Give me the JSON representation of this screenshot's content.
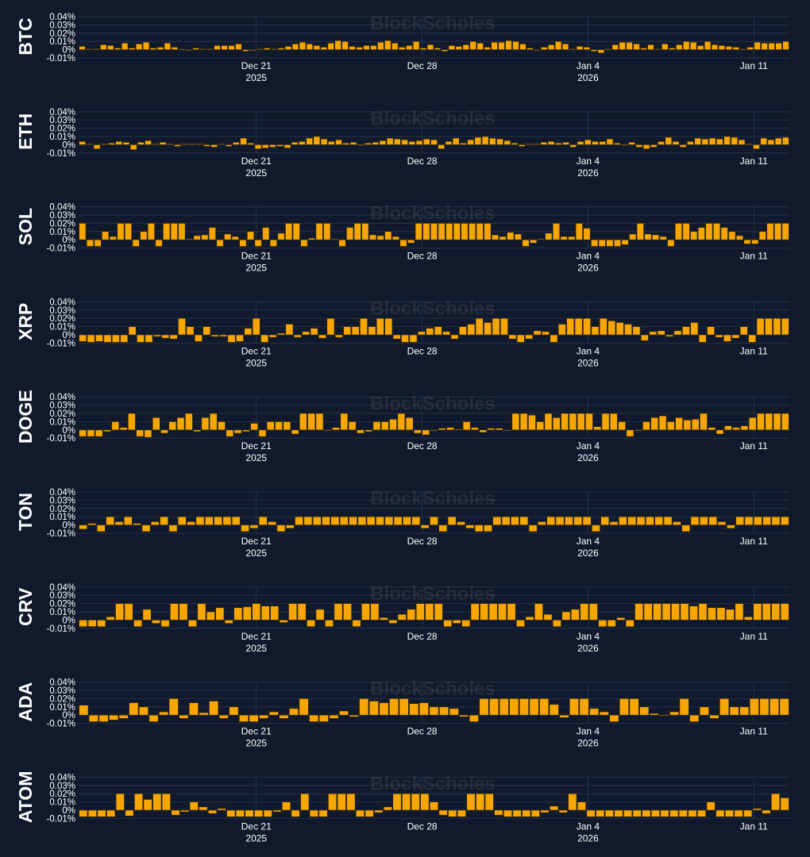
{
  "theme": {
    "background": "#111a2c",
    "bar_color": "#f7a600",
    "bar_edge": "#2a2410",
    "grid_color": "#25314a",
    "text_color": "#ffffff"
  },
  "watermark": "BlockScholes",
  "x_ticks": [
    {
      "label": "Dec 21",
      "sub": "2025",
      "index": 22
    },
    {
      "label": "Dec 28",
      "sub": "",
      "index": 43
    },
    {
      "label": "Jan 4",
      "sub": "2026",
      "index": 64
    },
    {
      "label": "Jan 11",
      "sub": "",
      "index": 85
    }
  ],
  "y_tick_labels": [
    "0.04%",
    "0.03%",
    "0.02%",
    "0.01%",
    "0%",
    "-0.01%"
  ],
  "chart_data": [
    {
      "type": "bar",
      "title": "BTC",
      "ylim": [
        -0.01,
        0.04
      ],
      "unit": "%",
      "values": [
        0.004,
        0.001,
        0.001,
        0.006,
        0.005,
        0.002,
        0.008,
        0.002,
        0.007,
        0.009,
        0.002,
        0.003,
        0.008,
        0.003,
        0.001,
        -0.001,
        0.002,
        0.001,
        0.001,
        0.005,
        0.005,
        0.005,
        0.007,
        -0.002,
        -0.001,
        0.001,
        0.002,
        0.001,
        0.002,
        0.004,
        0.007,
        0.009,
        0.007,
        0.005,
        0.003,
        0.008,
        0.011,
        0.01,
        0.004,
        0.003,
        0.005,
        0.005,
        0.009,
        0.011,
        0.008,
        0.003,
        0.005,
        0.01,
        0.002,
        0.006,
        0.002,
        -0.002,
        0.005,
        0.004,
        0.006,
        0.01,
        0.008,
        0.003,
        0.009,
        0.009,
        0.011,
        0.01,
        0.007,
        0.002,
        -0.001,
        0.003,
        0.006,
        0.01,
        0.007,
        0.001,
        0.004,
        0.003,
        -0.002,
        -0.004,
        0.001,
        0.006,
        0.009,
        0.009,
        0.007,
        0.002,
        0.006,
        0.001,
        0.007,
        0.002,
        0.006,
        0.01,
        0.009,
        0.005,
        0.01,
        0.006,
        0.005,
        0.004,
        0.003,
        0.001,
        0.003,
        0.009,
        0.008,
        0.008,
        0.008,
        0.01
      ]
    },
    {
      "type": "bar",
      "title": "ETH",
      "ylim": [
        -0.01,
        0.04
      ],
      "unit": "%",
      "values": [
        0.004,
        0.001,
        -0.005,
        0.001,
        0.002,
        0.004,
        0.003,
        -0.006,
        0.003,
        0.005,
        0.001,
        0.003,
        0.001,
        -0.002,
        0.001,
        0.001,
        0.001,
        -0.002,
        -0.003,
        0.001,
        -0.002,
        0.003,
        0.008,
        0.002,
        -0.005,
        -0.004,
        -0.003,
        -0.002,
        -0.004,
        0.003,
        0.004,
        0.008,
        0.01,
        0.007,
        0.004,
        0.006,
        0.002,
        0.003,
        -0.001,
        0.002,
        0.003,
        0.005,
        0.008,
        0.007,
        0.006,
        0.004,
        0.005,
        0.007,
        0.006,
        -0.005,
        0.004,
        0.008,
        0.002,
        0.006,
        0.009,
        0.01,
        0.008,
        0.007,
        0.005,
        0.002,
        -0.002,
        0.001,
        0.001,
        0.003,
        0.004,
        0.002,
        0.003,
        -0.003,
        0.004,
        0.006,
        0.004,
        0.004,
        0.007,
        0.002,
        -0.001,
        0.003,
        -0.003,
        -0.005,
        -0.003,
        0.004,
        0.009,
        0.004,
        -0.003,
        0.004,
        0.008,
        0.007,
        0.008,
        0.007,
        0.01,
        0.009,
        0.006,
        0.001,
        -0.005,
        0.008,
        0.006,
        0.008,
        0.009
      ]
    },
    {
      "type": "bar",
      "title": "SOL",
      "ylim": [
        -0.01,
        0.04
      ],
      "unit": "%",
      "values": [
        0.02,
        -0.008,
        -0.008,
        0.01,
        0.004,
        0.02,
        0.02,
        -0.008,
        0.01,
        0.02,
        -0.008,
        0.02,
        0.02,
        0.02,
        0.001,
        0.005,
        0.006,
        0.015,
        -0.008,
        0.007,
        0.004,
        -0.008,
        0.01,
        -0.008,
        0.015,
        -0.008,
        0.008,
        0.02,
        0.02,
        -0.008,
        0.002,
        0.02,
        0.02,
        0.001,
        -0.008,
        0.015,
        0.02,
        0.02,
        0.006,
        0.005,
        0.01,
        0.004,
        -0.008,
        -0.004,
        0.02,
        0.02,
        0.02,
        0.02,
        0.02,
        0.02,
        0.02,
        0.02,
        0.02,
        0.02,
        0.006,
        0.004,
        0.009,
        0.007,
        -0.008,
        -0.004,
        0.001,
        0.008,
        0.02,
        0.004,
        0.004,
        0.02,
        0.014,
        -0.008,
        -0.008,
        -0.008,
        -0.008,
        -0.006,
        0.007,
        0.02,
        0.007,
        0.006,
        0.004,
        -0.008,
        0.02,
        0.02,
        0.01,
        0.015,
        0.02,
        0.02,
        0.015,
        0.01,
        0.005,
        -0.005,
        -0.005,
        0.01,
        0.02,
        0.02,
        0.02
      ]
    },
    {
      "type": "bar",
      "title": "XRP",
      "ylim": [
        -0.01,
        0.04
      ],
      "unit": "%",
      "values": [
        -0.008,
        -0.009,
        -0.008,
        -0.009,
        -0.009,
        -0.009,
        0.01,
        -0.009,
        -0.009,
        -0.002,
        -0.004,
        -0.005,
        0.02,
        0.01,
        -0.008,
        0.01,
        -0.002,
        -0.002,
        -0.009,
        -0.008,
        0.008,
        0.02,
        -0.009,
        -0.003,
        0.002,
        0.013,
        -0.003,
        0.004,
        0.008,
        -0.004,
        0.02,
        -0.003,
        0.01,
        0.01,
        0.02,
        0.01,
        0.02,
        0.02,
        -0.005,
        -0.009,
        -0.009,
        0.004,
        0.008,
        0.01,
        0.004,
        -0.005,
        0.01,
        0.013,
        0.02,
        0.015,
        0.02,
        0.02,
        -0.005,
        -0.009,
        -0.005,
        0.005,
        0.004,
        -0.009,
        0.013,
        0.02,
        0.02,
        0.02,
        0.01,
        0.02,
        0.017,
        0.015,
        0.013,
        0.01,
        -0.007,
        0.004,
        0.005,
        -0.002,
        0.005,
        0.01,
        0.015,
        -0.009,
        0.01,
        -0.003,
        -0.008,
        -0.004,
        0.01,
        -0.009,
        0.02,
        0.02,
        0.02,
        0.02
      ]
    },
    {
      "type": "bar",
      "title": "DOGE",
      "ylim": [
        -0.01,
        0.04
      ],
      "unit": "%",
      "values": [
        -0.008,
        -0.008,
        -0.008,
        -0.002,
        0.01,
        0.003,
        0.02,
        -0.008,
        -0.009,
        0.015,
        -0.004,
        0.01,
        0.015,
        0.02,
        -0.002,
        0.015,
        0.02,
        0.01,
        -0.008,
        -0.004,
        -0.002,
        0.008,
        -0.008,
        0.01,
        0.01,
        0.01,
        -0.005,
        0.02,
        0.02,
        0.02,
        -0.001,
        0.003,
        0.02,
        0.01,
        -0.004,
        -0.002,
        0.01,
        0.01,
        0.013,
        0.02,
        0.015,
        -0.004,
        -0.006,
        -0.001,
        0.002,
        0.003,
        0.001,
        0.01,
        0.003,
        -0.003,
        0.002,
        0.002,
        -0.001,
        0.02,
        0.02,
        0.018,
        0.01,
        0.02,
        0.015,
        0.02,
        0.02,
        0.02,
        0.02,
        0.004,
        0.02,
        0.02,
        0.01,
        -0.008,
        -0.001,
        0.01,
        0.015,
        0.017,
        0.01,
        0.015,
        0.012,
        0.013,
        0.02,
        0.003,
        -0.005,
        0.005,
        0.003,
        0.005,
        0.015,
        0.02,
        0.02,
        0.02,
        0.02
      ]
    },
    {
      "type": "bar",
      "title": "TON",
      "ylim": [
        -0.01,
        0.04
      ],
      "unit": "%",
      "values": [
        -0.005,
        0.002,
        -0.008,
        0.01,
        0.004,
        0.01,
        0.002,
        -0.008,
        0.004,
        0.01,
        -0.008,
        0.01,
        0.004,
        0.01,
        0.01,
        0.01,
        0.01,
        0.01,
        -0.008,
        -0.004,
        0.01,
        0.004,
        -0.008,
        -0.004,
        0.01,
        0.01,
        0.01,
        0.01,
        0.01,
        0.01,
        0.01,
        0.01,
        0.01,
        0.01,
        0.01,
        0.01,
        0.01,
        0.01,
        -0.004,
        0.01,
        -0.008,
        0.01,
        0.004,
        -0.004,
        -0.008,
        -0.008,
        0.01,
        0.01,
        0.01,
        0.01,
        -0.008,
        0.004,
        0.01,
        0.01,
        0.01,
        0.01,
        0.01,
        -0.008,
        0.01,
        0.004,
        0.01,
        0.01,
        0.01,
        0.01,
        0.01,
        0.01,
        0.004,
        -0.008,
        0.01,
        0.01,
        0.01,
        0.004,
        -0.004,
        0.01,
        0.01,
        0.01,
        0.01,
        0.01,
        0.01
      ]
    },
    {
      "type": "bar",
      "title": "CRV",
      "ylim": [
        -0.01,
        0.04
      ],
      "unit": "%",
      "values": [
        -0.008,
        -0.008,
        -0.008,
        0.004,
        0.02,
        0.02,
        -0.008,
        0.013,
        -0.004,
        -0.008,
        0.02,
        0.02,
        -0.008,
        0.02,
        0.01,
        0.015,
        -0.004,
        0.015,
        0.016,
        0.02,
        0.017,
        0.017,
        -0.003,
        0.02,
        0.02,
        -0.008,
        0.013,
        -0.008,
        0.02,
        0.02,
        -0.008,
        0.02,
        0.02,
        0.003,
        -0.004,
        0.007,
        0.013,
        0.02,
        0.02,
        0.02,
        -0.008,
        -0.004,
        -0.008,
        0.02,
        0.02,
        0.02,
        0.02,
        0.02,
        -0.008,
        0.004,
        0.02,
        0.007,
        -0.008,
        0.01,
        0.013,
        0.02,
        0.02,
        -0.008,
        -0.008,
        0.003,
        -0.008,
        0.02,
        0.02,
        0.02,
        0.02,
        0.02,
        0.02,
        0.017,
        0.02,
        0.015,
        0.015,
        0.013,
        0.02,
        0.004,
        0.02,
        0.02,
        0.02,
        0.02
      ]
    },
    {
      "type": "bar",
      "title": "ADA",
      "ylim": [
        -0.01,
        0.04
      ],
      "unit": "%",
      "values": [
        0.012,
        -0.008,
        -0.008,
        -0.006,
        -0.004,
        0.015,
        0.01,
        -0.008,
        0.004,
        0.02,
        -0.004,
        0.015,
        0.003,
        0.017,
        -0.004,
        0.01,
        -0.008,
        -0.008,
        -0.004,
        0.004,
        -0.004,
        0.008,
        0.02,
        -0.008,
        -0.008,
        -0.004,
        0.005,
        -0.002,
        0.02,
        0.017,
        0.015,
        0.02,
        0.02,
        0.014,
        0.015,
        0.01,
        0.01,
        0.008,
        -0.002,
        -0.008,
        0.02,
        0.02,
        0.02,
        0.02,
        0.02,
        0.02,
        0.02,
        0.013,
        -0.003,
        0.02,
        0.02,
        0.008,
        0.004,
        -0.008,
        0.02,
        0.02,
        0.01,
        0.002,
        -0.001,
        0.004,
        0.02,
        -0.008,
        0.01,
        -0.004,
        0.02,
        0.01,
        0.01,
        0.02,
        0.02,
        0.02,
        0.02
      ]
    },
    {
      "type": "bar",
      "title": "ATOM",
      "ylim": [
        -0.01,
        0.04
      ],
      "unit": "%",
      "values": [
        -0.008,
        -0.008,
        -0.008,
        -0.008,
        0.02,
        -0.007,
        0.02,
        0.013,
        0.02,
        0.02,
        -0.006,
        -0.002,
        0.01,
        0.004,
        -0.004,
        0.002,
        -0.008,
        -0.008,
        -0.008,
        -0.008,
        -0.008,
        -0.002,
        0.01,
        -0.008,
        0.02,
        -0.008,
        -0.008,
        0.02,
        0.02,
        0.02,
        -0.008,
        -0.008,
        -0.003,
        0.004,
        0.02,
        0.02,
        0.02,
        0.02,
        0.01,
        -0.006,
        -0.008,
        -0.008,
        0.02,
        0.02,
        0.02,
        -0.006,
        -0.008,
        -0.008,
        -0.008,
        -0.008,
        -0.003,
        0.005,
        -0.003,
        0.02,
        0.01,
        -0.008,
        -0.008,
        -0.008,
        -0.008,
        -0.008,
        -0.008,
        -0.008,
        -0.008,
        -0.008,
        -0.008,
        -0.008,
        -0.008,
        -0.008,
        0.01,
        -0.008,
        -0.008,
        -0.008,
        -0.008,
        0.002,
        -0.004,
        0.02,
        0.015
      ]
    }
  ]
}
